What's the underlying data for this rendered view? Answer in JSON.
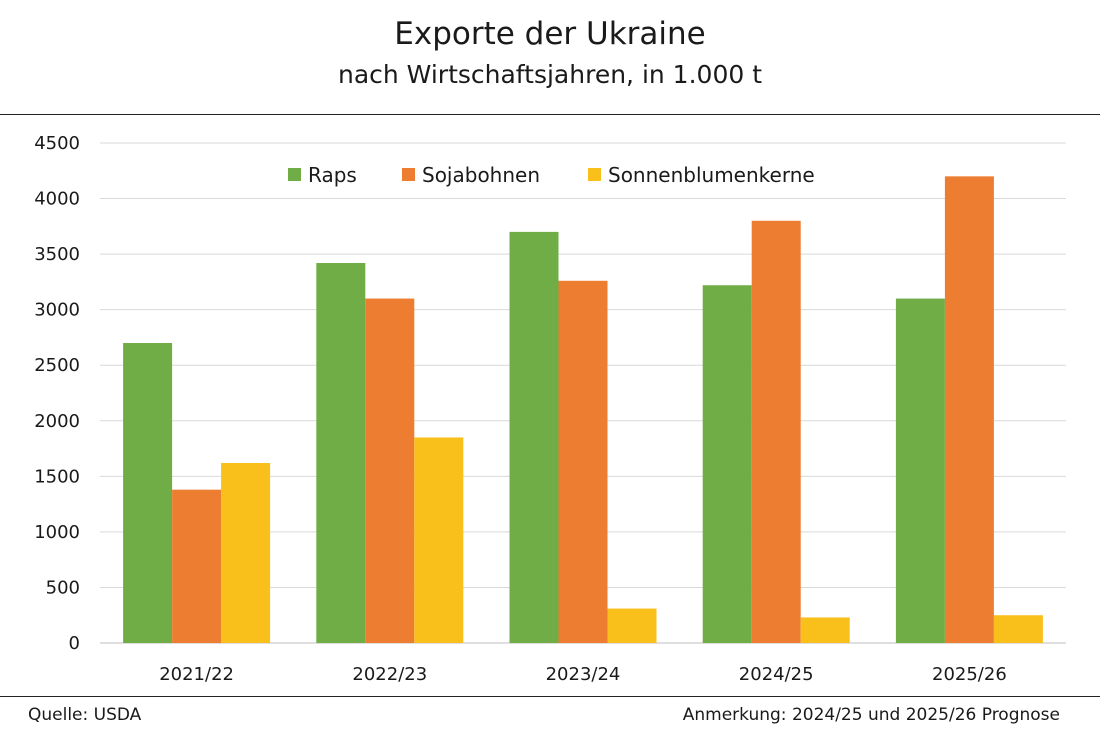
{
  "header": {
    "title": "Exporte der Ukraine",
    "subtitle": "nach Wirtschaftsjahren, in 1.000 t"
  },
  "footer": {
    "source": "Quelle: USDA",
    "note": "Anmerkung: 2024/25 und 2025/26 Prognose"
  },
  "chart_data": {
    "type": "bar",
    "title": "Exporte der Ukraine",
    "subtitle": "nach Wirtschaftsjahren, in 1.000 t",
    "xlabel": "",
    "ylabel": "",
    "categories": [
      "2021/22",
      "2022/23",
      "2023/24",
      "2024/25",
      "2025/26"
    ],
    "ylim": [
      0,
      4500
    ],
    "yticks": [
      0,
      500,
      1000,
      1500,
      2000,
      2500,
      3000,
      3500,
      4000,
      4500
    ],
    "grid": true,
    "legend_position": "top-center",
    "series": [
      {
        "name": "Raps",
        "color": "#70ad47",
        "values": [
          2700,
          3420,
          3700,
          3220,
          3100
        ]
      },
      {
        "name": "Sojabohnen",
        "color": "#ed7d31",
        "values": [
          1380,
          3100,
          3260,
          3800,
          4200
        ]
      },
      {
        "name": "Sonnenblumenkerne",
        "color": "#f9bf1a",
        "values": [
          1620,
          1850,
          310,
          230,
          250
        ]
      }
    ]
  }
}
